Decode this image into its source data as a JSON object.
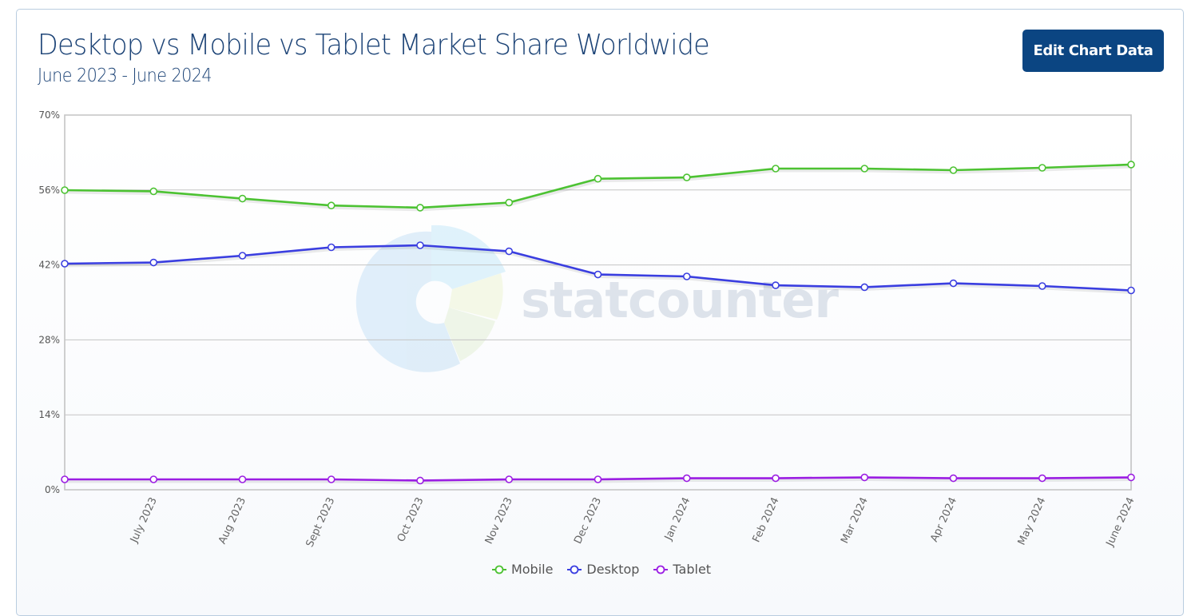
{
  "header": {
    "title": "Desktop vs Mobile vs Tablet Market Share Worldwide",
    "subtitle": "June 2023 - June 2024",
    "edit_button_label": "Edit Chart Data"
  },
  "watermark": "statcounter",
  "colors": {
    "mobile": "#4cc232",
    "desktop": "#3a3ee0",
    "tablet": "#9b1ee3",
    "button": "#0b4582",
    "title": "#1d4477"
  },
  "chart_data": {
    "type": "line",
    "title": "Desktop vs Mobile vs Tablet Market Share Worldwide",
    "subtitle": "June 2023 - June 2024",
    "xlabel": "",
    "ylabel": "",
    "ylim": [
      0,
      70
    ],
    "y_ticks": [
      "0%",
      "14%",
      "28%",
      "42%",
      "56%",
      "70%"
    ],
    "y_tick_values": [
      0,
      14,
      28,
      42,
      56,
      70
    ],
    "categories": [
      "June 2023",
      "July 2023",
      "Aug 2023",
      "Sept 2023",
      "Oct 2023",
      "Nov 2023",
      "Dec 2023",
      "Jan 2024",
      "Feb 2024",
      "Mar 2024",
      "Apr 2024",
      "May 2024",
      "June 2024"
    ],
    "x_tick_labels": [
      "",
      "July 2023",
      "Aug 2023",
      "Sept 2023",
      "Oct 2023",
      "Nov 2023",
      "Dec 2023",
      "Jan 2024",
      "Feb 2024",
      "Mar 2024",
      "Apr 2024",
      "May 2024",
      "June 2024"
    ],
    "series": [
      {
        "name": "Mobile",
        "color": "#4cc232",
        "values": [
          55.97,
          55.75,
          54.4,
          53.1,
          52.7,
          53.65,
          58.1,
          58.35,
          60.0,
          60.0,
          59.7,
          60.15,
          60.75
        ]
      },
      {
        "name": "Desktop",
        "color": "#3a3ee0",
        "values": [
          42.24,
          42.46,
          43.73,
          45.3,
          45.67,
          44.55,
          40.22,
          39.85,
          38.2,
          37.84,
          38.58,
          38.06,
          37.24
        ]
      },
      {
        "name": "Tablet",
        "color": "#9b1ee3",
        "values": [
          1.94,
          1.94,
          1.94,
          1.94,
          1.72,
          1.94,
          1.94,
          2.16,
          2.16,
          2.31,
          2.16,
          2.16,
          2.31
        ]
      }
    ],
    "grid": true,
    "legend_position": "bottom"
  }
}
